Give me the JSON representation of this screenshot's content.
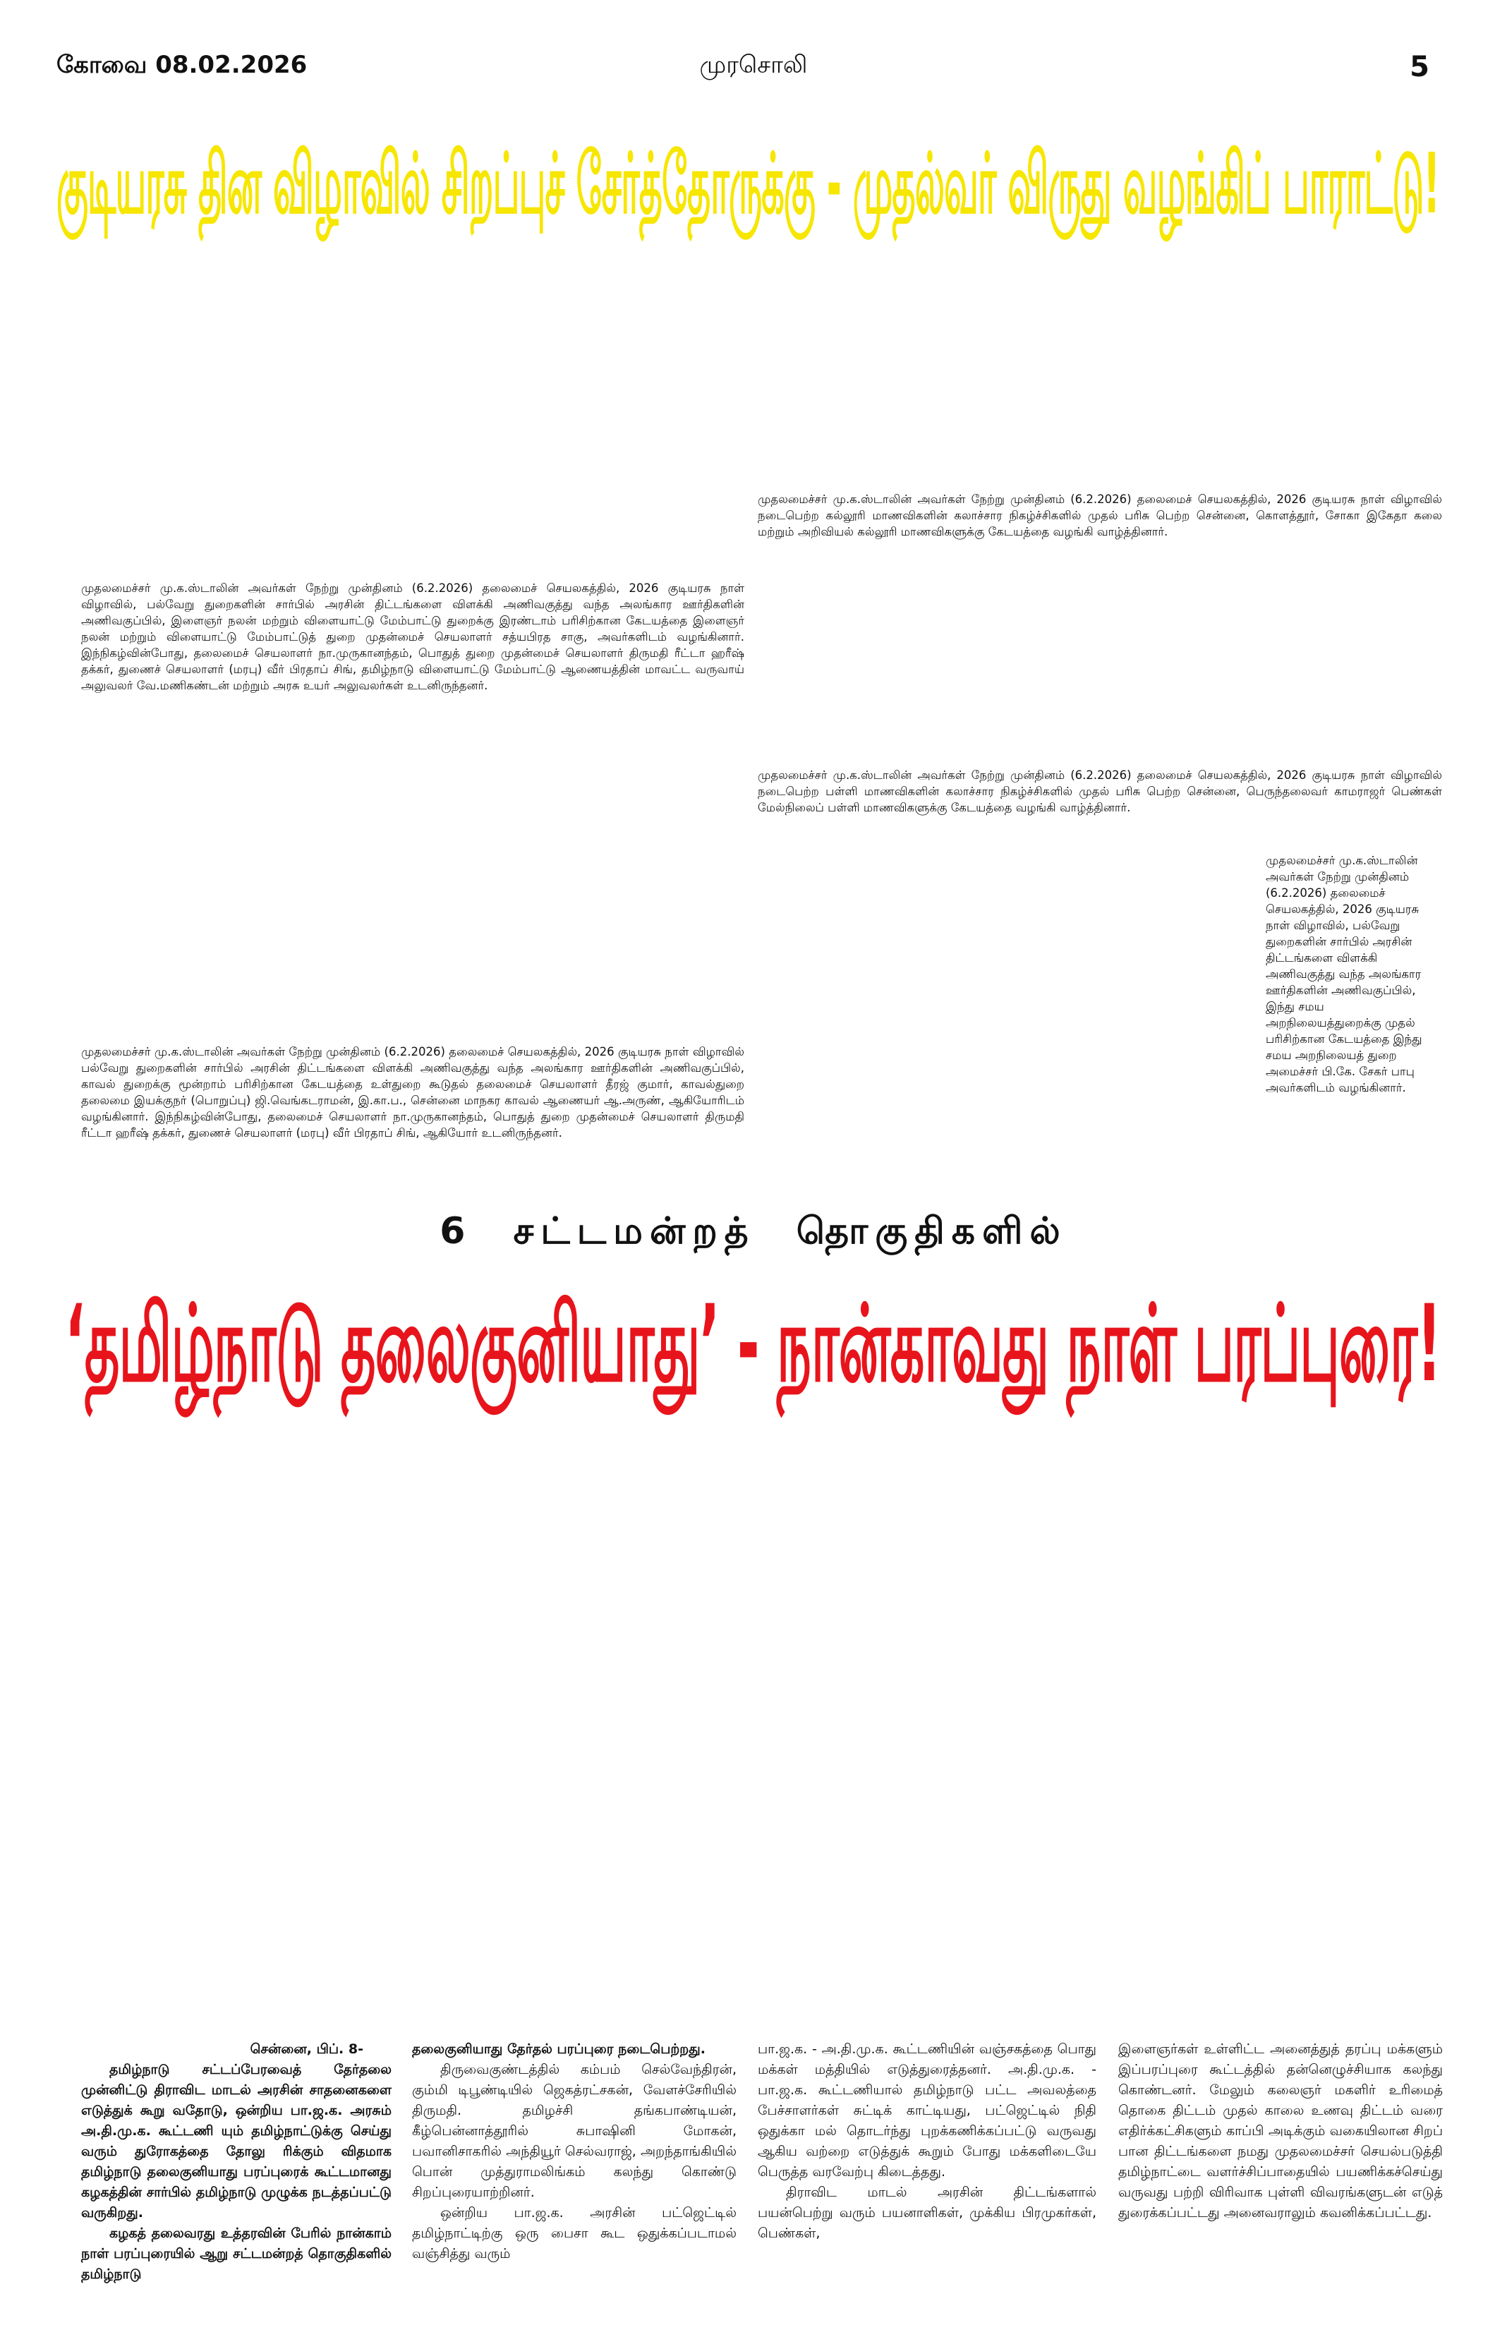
{
  "header": {
    "city_date": "கோவை 08.02.2026",
    "paper": "முரசொலி",
    "page": "5"
  },
  "headline_top": "குடியரசு தின விழாவில் சிறப்புச் சேர்த்தோருக்கு - முதல்வர் விருது வழங்கிப் பாராட்டு!",
  "captions": [
    "முதலமைச்சர் மு.க.ஸ்டாலின் அவர்கள் நேற்று முன்தினம் (6.2.2026) தலைமைச் செயலகத்தில், 2026 குடியரசு நாள் விழாவில் நடைபெற்ற கல்லூரி மாணவிகளின் கலாச்சார நிகழ்ச்சிகளில் முதல் பரிசு பெற்ற சென்னை, கொளத்தூர், சோகா இகேதா கலை மற்றும் அறிவியல் கல்லூரி மாணவிகளுக்கு கேடயத்தை வழங்கி வாழ்த்தினார்.",
    "முதலமைச்சர் மு.க.ஸ்டாலின் அவர்கள் நேற்று முன்தினம் (6.2.2026) தலைமைச் செயலகத்தில், 2026 குடியரசு நாள் விழாவில், பல்வேறு துறைகளின் சார்பில் அரசின் திட்டங்களை விளக்கி அணிவகுத்து வந்த அலங்கார ஊர்திகளின் அணிவகுப்பில், இளைஞர் நலன் மற்றும் விளையாட்டு மேம்பாட்டு துறைக்கு இரண்டாம் பரிசிற்கான கேடயத்தை இளைஞர் நலன் மற்றும் விளையாட்டு மேம்பாட்டுத் துறை முதன்மைச் செயலாளர் சத்யபிரத சாகு, அவர்களிடம் வழங்கினார். இந்நிகழ்வின்போது, தலைமைச் செயலாளர் நா.முருகானந்தம், பொதுத் துறை முதன்மைச் செயலாளர் திருமதி ரீட்டா ஹரீஷ் தக்கர், துணைச் செயலாளர் (மரபு) வீர் பிரதாப் சிங், தமிழ்நாடு விளையாட்டு மேம்பாட்டு ஆணையத்தின் மாவட்ட வருவாய் அலுவலர் வே.மணிகண்டன் மற்றும் அரசு உயர் அலுவலர்கள் உடனிருந்தனர்.",
    "முதலமைச்சர் மு.க.ஸ்டாலின் அவர்கள் நேற்று முன்தினம் (6.2.2026) தலைமைச் செயலகத்தில், 2026 குடியரசு நாள் விழாவில் நடைபெற்ற பள்ளி மாணவிகளின் கலாச்சார நிகழ்ச்சிகளில் முதல் பரிசு பெற்ற சென்னை, பெருந்தலைவர் காமராஜர் பெண்கள் மேல்நிலைப் பள்ளி மாணவிகளுக்கு கேடயத்தை வழங்கி வாழ்த்தினார்.",
    "முதலமைச்சர் மு.க.ஸ்டாலின் அவர்கள் நேற்று முன்தினம் (6.2.2026) தலைமைச் செயலகத்தில், 2026 குடியரசு நாள் விழாவில், பல்வேறு துறைகளின் சார்பில் அரசின் திட்டங்களை விளக்கி அணிவகுத்து வந்த அலங்கார ஊர்திகளின் அணிவகுப்பில், இந்து சமய அறநிலையத்துறைக்கு முதல் பரிசிற்கான கேடயத்தை இந்து சமய அறநிலையத் துறை அமைச்சர் பி.கே. சேகர் பாபு அவர்களிடம் வழங்கினார்.",
    "முதலமைச்சர் மு.க.ஸ்டாலின் அவர்கள் நேற்று முன்தினம் (6.2.2026) தலைமைச் செயலகத்தில், 2026 குடியரசு நாள் விழாவில் பல்வேறு துறைகளின் சார்பில் அரசின் திட்டங்களை விளக்கி அணிவகுத்து வந்த அலங்கார ஊர்திகளின் அணிவகுப்பில், காவல் துறைக்கு மூன்றாம் பரிசிற்கான கேடயத்தை உள்துறை கூடுதல் தலைமைச் செயலாளர் தீரஜ் குமார், காவல்துறை தலைமை இயக்குநர் (பொறுப்பு) ஜி.வெங்கடராமன், இ.கா.ப., சென்னை மாநகர காவல் ஆணையர் ஆ.அருண், ஆகியோரிடம் வழங்கினார். இந்நிகழ்வின்போது, தலைமைச் செயலாளர் நா.முருகானந்தம், பொதுத் துறை முதன்மைச் செயலாளர் திருமதி ரீட்டா ஹரீஷ் தக்கர், துணைச் செயலாளர் (மரபு) வீர் பிரதாப் சிங், ஆகியோர் உடனிருந்தனர்."
  ],
  "kicker": "6 சட்டமன்றத் தொகுதிகளில்",
  "headline_main": "‘தமிழ்நாடு தலைகுனியாது’ - நான்காவது நாள் பரப்புரை!",
  "article": {
    "dateline": "சென்னை, பிப். 8-",
    "columns": [
      [
        "தமிழ்நாடு சட்டப்பேரவைத் தேர்தலை முன்னிட்டு திராவிட மாடல் அரசின் சாதனைகளை எடுத்துக் கூறு வதோடு, ஒன்றிய பா.ஜ.க. அரசும் அ.தி.மு.க. கூட்டணி யும் தமிழ்நாட்டுக்கு செய்து வரும் துரோகத்தை தோலு ரிக்கும் விதமாக தமிழ்நாடு தலைகுனியாது பரப்புரைக் கூட்டமானது கழகத்தின் சார்பில் தமிழ்நாடு முழுக்க நடத்தப்பட்டு வருகிறது.",
        "கழகத் தலைவரது உத்தரவின் பேரில் நான்காம் நாள் பரப்புரையில் ஆறு சட்டமன்றத் தொகுதிகளில் தமிழ்நாடு"
      ],
      [
        "தலைகுனியாது தேர்தல் பரப்புரை நடைபெற்றது.",
        "திருவைகுண்டத்தில் கம்பம் செல்வேந்திரன், கும்மி டிபூண்டியில் ஜெகத்ரட்சகன், வேளச்சேரியில் திருமதி. தமிழச்சி தங்கபாண்டியன், கீழ்பென்னாத்தூரில் சுபாஷினி மோகன், பவானிசாகரில் அந்தியூர் செல்வராஜ், அறந்தாங்கியில் பொன் முத்துராமலிங்கம் கலந்து கொண்டு சிறப்புரையாற்றினர்.",
        "ஒன்றிய பா.ஜ.க. அரசின் பட்ஜெட்டில் தமிழ்நாட்டிற்கு ஒரு பைசா கூட ஒதுக்கப்படாமல் வஞ்சித்து வரும்"
      ],
      [
        "பா.ஜ.க. - அ.தி.மு.க. கூட்டணியின் வஞ்சகத்தை பொது மக்கள் மத்தியில் எடுத்துரைத்தனர். அ.தி.மு.க. - பா.ஜ.க. கூட்டணியால் தமிழ்நாடு பட்ட அவலத்தை பேச்சாளர்கள் சுட்டிக் காட்டியது, பட்ஜெட்டில் நிதி ஒதுக்கா மல் தொடர்ந்து புறக்கணிக்கப்பட்டு வருவது ஆகிய வற்றை எடுத்துக் கூறும் போது மக்களிடையே பெருத்த வரவேற்பு கிடைத்தது.",
        "திராவிட மாடல் அரசின் திட்டங்களால் பயன்பெற்று வரும் பயனாளிகள், முக்கிய பிரமுகர்கள், பெண்கள்,"
      ],
      [
        "இளைஞர்கள் உள்ளிட்ட அனைத்துத் தரப்பு மக்களும் இப்பரப்புரை கூட்டத்தில் தன்னெழுச்சியாக கலந்து கொண்டனர். மேலும் கலைஞர் மகளிர் உரிமைத் தொகை திட்டம் முதல் காலை உணவு திட்டம் வரை எதிர்க்கட்சிகளும் காப்பி அடிக்கும் வகையிலான சிறப் பான திட்டங்களை நமது முதலமைச்சர் செயல்படுத்தி தமிழ்நாட்டை வளர்ச்சிப்பாதையில் பயணிக்கச்செய்து வருவது பற்றி விரிவாக புள்ளி விவரங்களுடன் எடுத் துரைக்கப்பட்டது அனைவராலும் கவனிக்கப்பட்டது."
      ]
    ]
  }
}
